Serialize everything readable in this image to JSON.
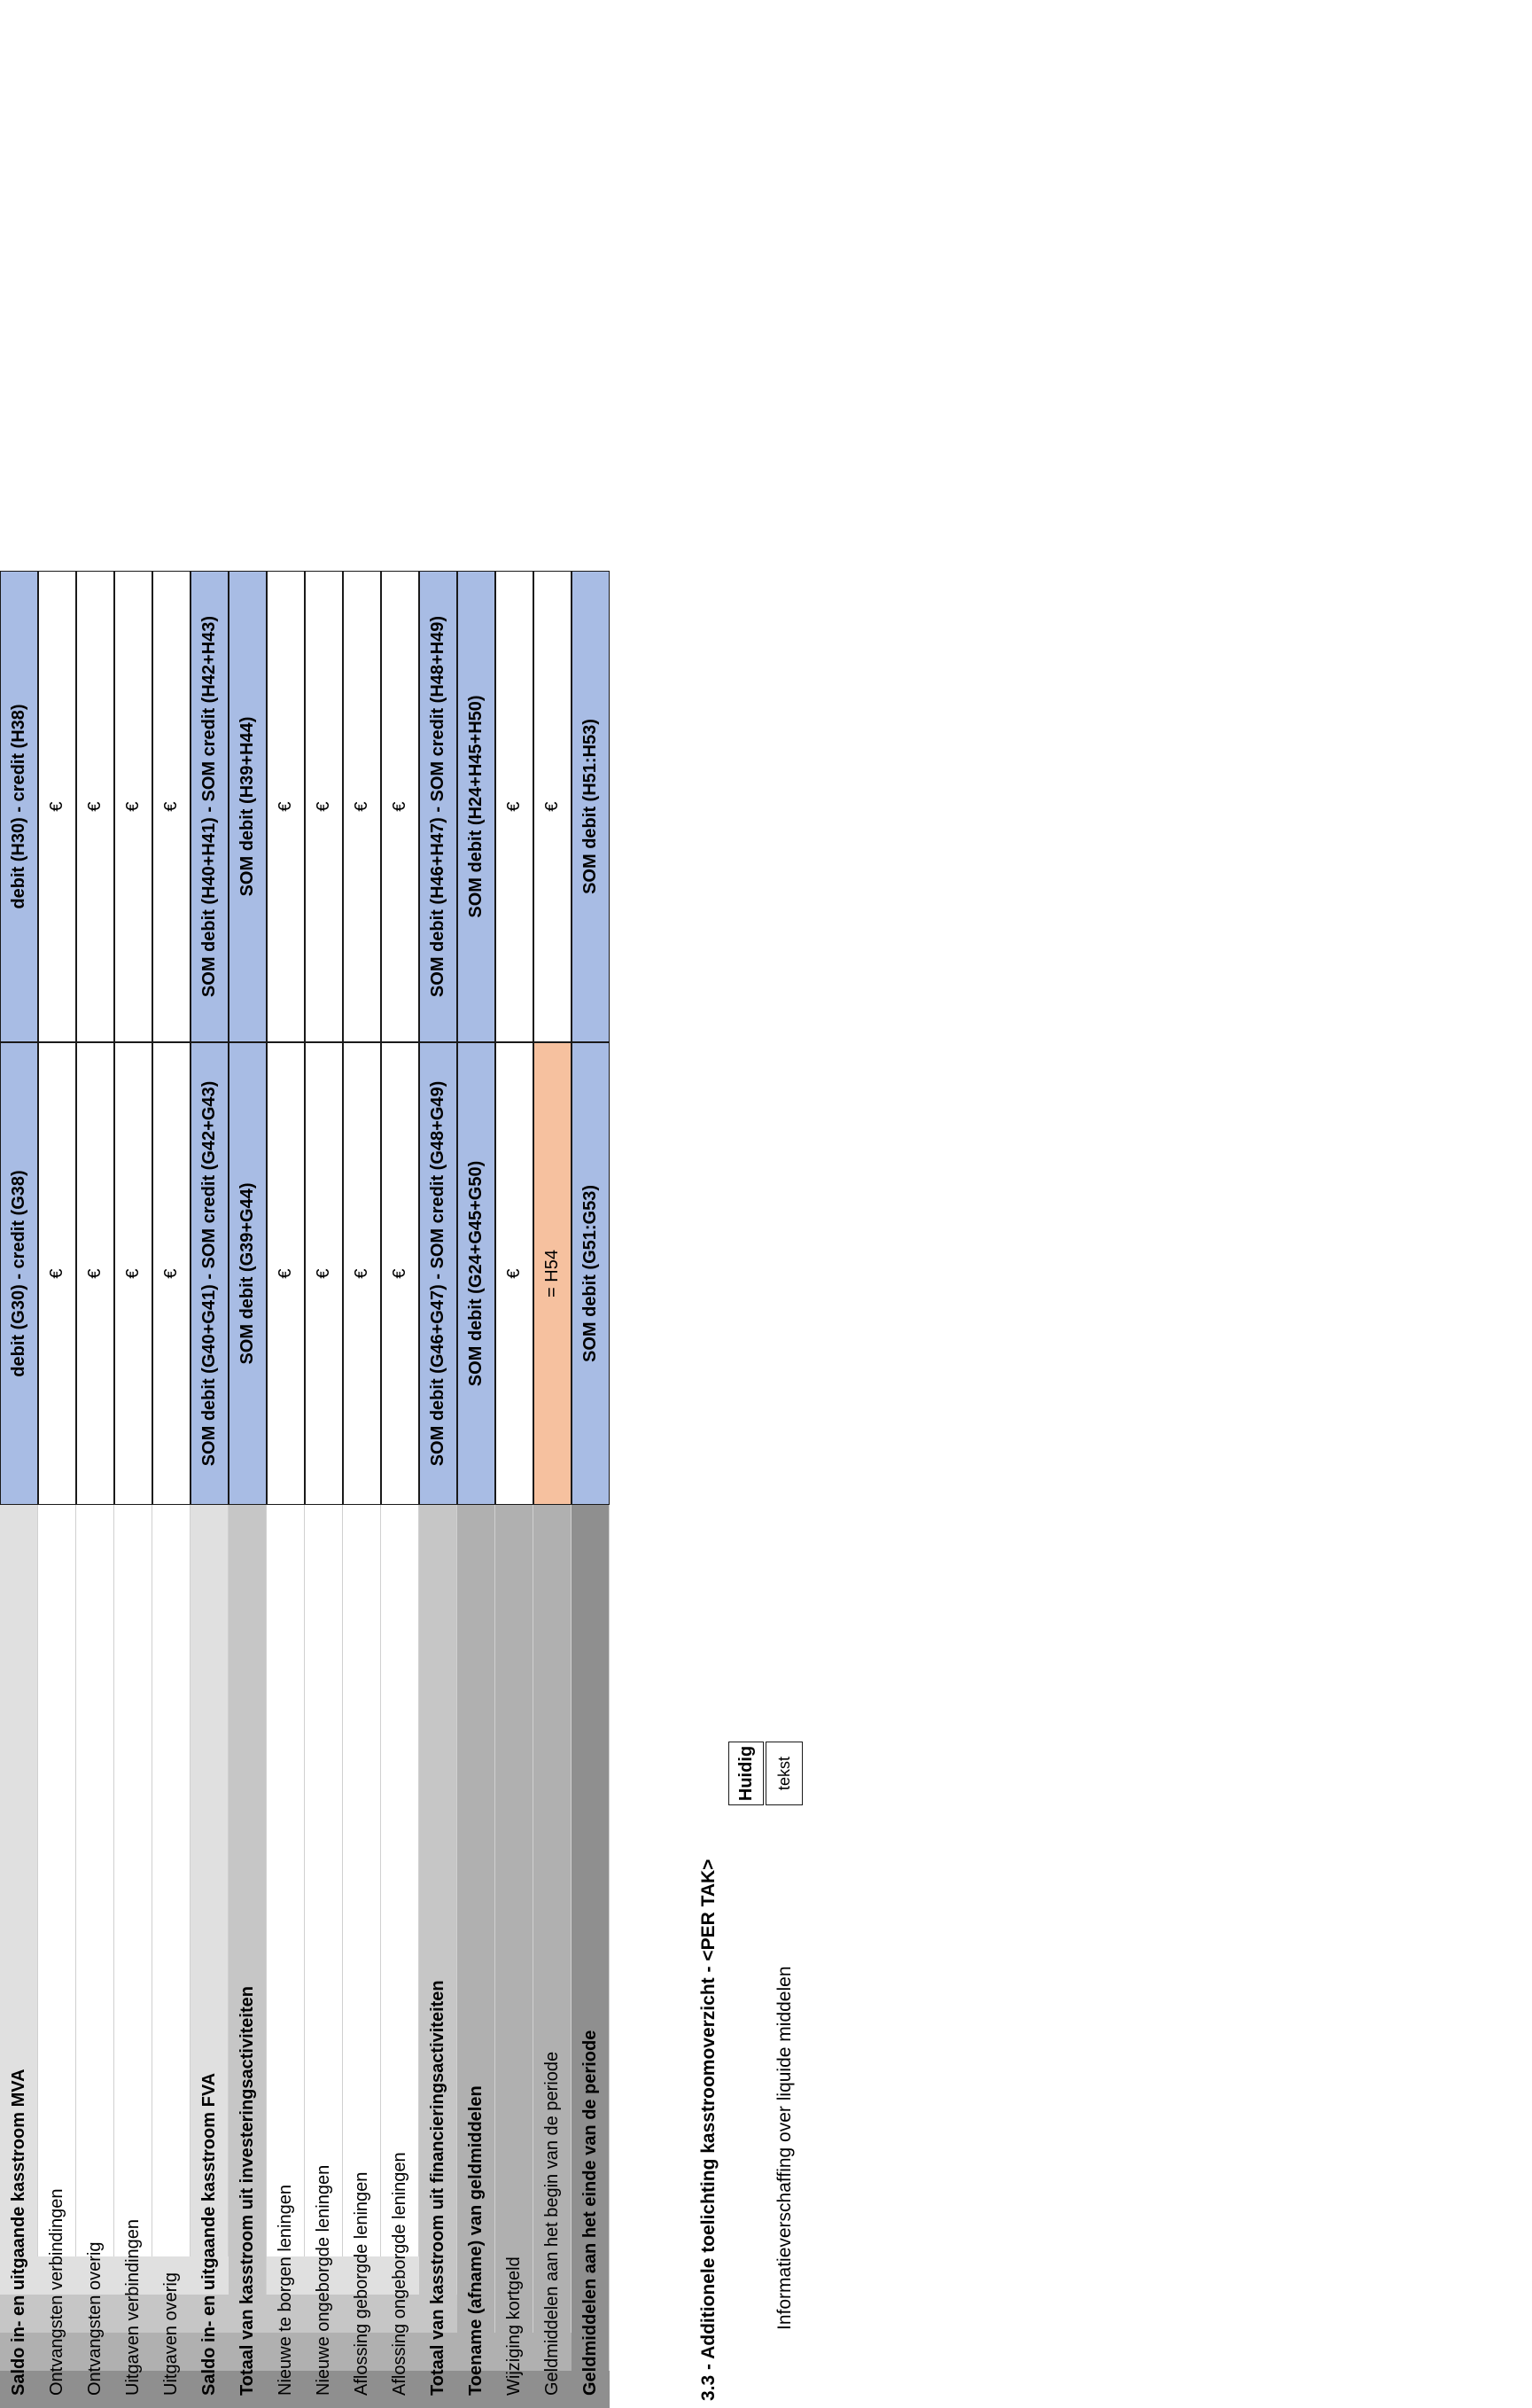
{
  "table": {
    "rows": [
      {
        "label": "Saldo in- en uitgaande kasstroom MVA",
        "g": "debit (G30) - credit (G38)",
        "h": "debit (H30) - credit (H38)",
        "style": "sum"
      },
      {
        "label": "Ontvangsten verbindingen",
        "g": "€",
        "h": "€",
        "style": "normal"
      },
      {
        "label": "Ontvangsten overig",
        "g": "€",
        "h": "€",
        "style": "normal"
      },
      {
        "label": "Uitgaven verbindingen",
        "g": "€",
        "h": "€",
        "style": "normal"
      },
      {
        "label": "Uitgaven overig",
        "g": "€",
        "h": "€",
        "style": "normal"
      },
      {
        "label": "Saldo in- en uitgaande kasstroom FVA",
        "g": "SOM debit (G40+G41) - SOM credit (G42+G43)",
        "h": "SOM debit (H40+H41) - SOM credit (H42+H43)",
        "style": "sum"
      },
      {
        "label": "Totaal van kasstroom uit investeringsactiviteiten",
        "g": "SOM debit (G39+G44)",
        "h": "SOM debit (H39+H44)",
        "style": "sum"
      },
      {
        "label": "Nieuwe te borgen leningen",
        "g": "€",
        "h": "€",
        "style": "normal"
      },
      {
        "label": "Nieuwe ongeborgde leningen",
        "g": "€",
        "h": "€",
        "style": "normal"
      },
      {
        "label": "Aflossing geborgde leningen",
        "g": "€",
        "h": "€",
        "style": "normal"
      },
      {
        "label": "Aflossing ongeborgde leningen",
        "g": "€",
        "h": "€",
        "style": "normal"
      },
      {
        "label": "Totaal van kasstroom uit financieringsactiviteiten",
        "g": "SOM debit (G46+G47) - SOM credit (G48+G49)",
        "h": "SOM debit (H46+H47) - SOM credit (H48+H49)",
        "style": "sum"
      },
      {
        "label": "Toename (afname) van geldmiddelen",
        "g": "SOM debit (G24+G45+G50)",
        "h": "SOM debit (H24+H45+H50)",
        "style": "sum"
      },
      {
        "label": "Wijziging kortgeld",
        "g": "€",
        "h": "€",
        "style": "normal"
      },
      {
        "label": "Geldmiddelen aan het begin van de periode",
        "g": "= H54",
        "h": "€",
        "style": "orange"
      },
      {
        "label": "Geldmiddelen aan het einde van de periode",
        "g": "SOM debit (G51:G53)",
        "h": "SOM debit (H51:H53)",
        "style": "sum"
      }
    ]
  },
  "notes": {
    "title": "3.3 - Additionele toelichting kasstroomoverzicht - <PER TAK>",
    "column_header": "Huidig",
    "description": "Informatieverschaffing over liquide middelen",
    "value": "tekst"
  },
  "colors": {
    "sum_fill": "#a8bce4",
    "orange_fill": "#f6c19f",
    "band_light": "#e0e0e0",
    "band_mid": "#c6c6c6",
    "band_dark": "#b0b0b0",
    "band_darkest": "#8f8f8f"
  }
}
